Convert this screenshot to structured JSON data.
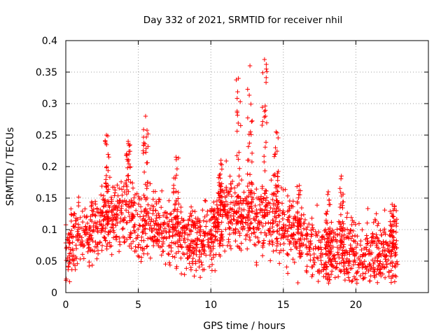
{
  "chart_data": {
    "type": "scatter",
    "title": "Day 332 of 2021, SRMTID for receiver nhil",
    "xlabel": "GPS time / hours",
    "ylabel": "SRMTID / TECUs",
    "xlim": [
      0,
      25
    ],
    "ylim": [
      0,
      0.4
    ],
    "xticks": [
      0,
      5,
      10,
      15,
      20
    ],
    "yticks": [
      0,
      0.05,
      0.1,
      0.15,
      0.2,
      0.25,
      0.3,
      0.35,
      0.4
    ],
    "xtick_labels": [
      "0",
      "5",
      "10",
      "15",
      "20"
    ],
    "ytick_labels": [
      "0",
      "0.05",
      "0.1",
      "0.15",
      "0.2",
      "0.25",
      "0.3",
      "0.35",
      "0.4"
    ],
    "grid": true,
    "marker": "+",
    "color": "#ff0000",
    "series": [
      {
        "name": "SRMTID",
        "x_range": [
          0,
          22.9
        ],
        "baseline": [
          [
            0,
            0.07
          ],
          [
            1,
            0.09
          ],
          [
            2,
            0.1
          ],
          [
            3,
            0.11
          ],
          [
            4,
            0.13
          ],
          [
            5,
            0.11
          ],
          [
            6,
            0.11
          ],
          [
            7,
            0.1
          ],
          [
            8,
            0.09
          ],
          [
            9,
            0.085
          ],
          [
            10,
            0.1
          ],
          [
            11,
            0.13
          ],
          [
            12,
            0.12
          ],
          [
            13,
            0.12
          ],
          [
            14,
            0.12
          ],
          [
            15,
            0.11
          ],
          [
            16,
            0.09
          ],
          [
            17,
            0.07
          ],
          [
            18,
            0.06
          ],
          [
            19,
            0.065
          ],
          [
            20,
            0.065
          ],
          [
            21,
            0.06
          ],
          [
            22,
            0.065
          ],
          [
            22.9,
            0.07
          ]
        ],
        "peaks": [
          {
            "x": 2.8,
            "y": 0.25
          },
          {
            "x": 4.3,
            "y": 0.24
          },
          {
            "x": 5.5,
            "y": 0.28
          },
          {
            "x": 7.6,
            "y": 0.215
          },
          {
            "x": 10.7,
            "y": 0.21
          },
          {
            "x": 11.9,
            "y": 0.34
          },
          {
            "x": 12.7,
            "y": 0.36
          },
          {
            "x": 13.7,
            "y": 0.37
          },
          {
            "x": 14.5,
            "y": 0.255
          },
          {
            "x": 16.1,
            "y": 0.17
          },
          {
            "x": 18.1,
            "y": 0.16
          },
          {
            "x": 19.0,
            "y": 0.185
          },
          {
            "x": 22.5,
            "y": 0.14
          }
        ]
      }
    ]
  }
}
